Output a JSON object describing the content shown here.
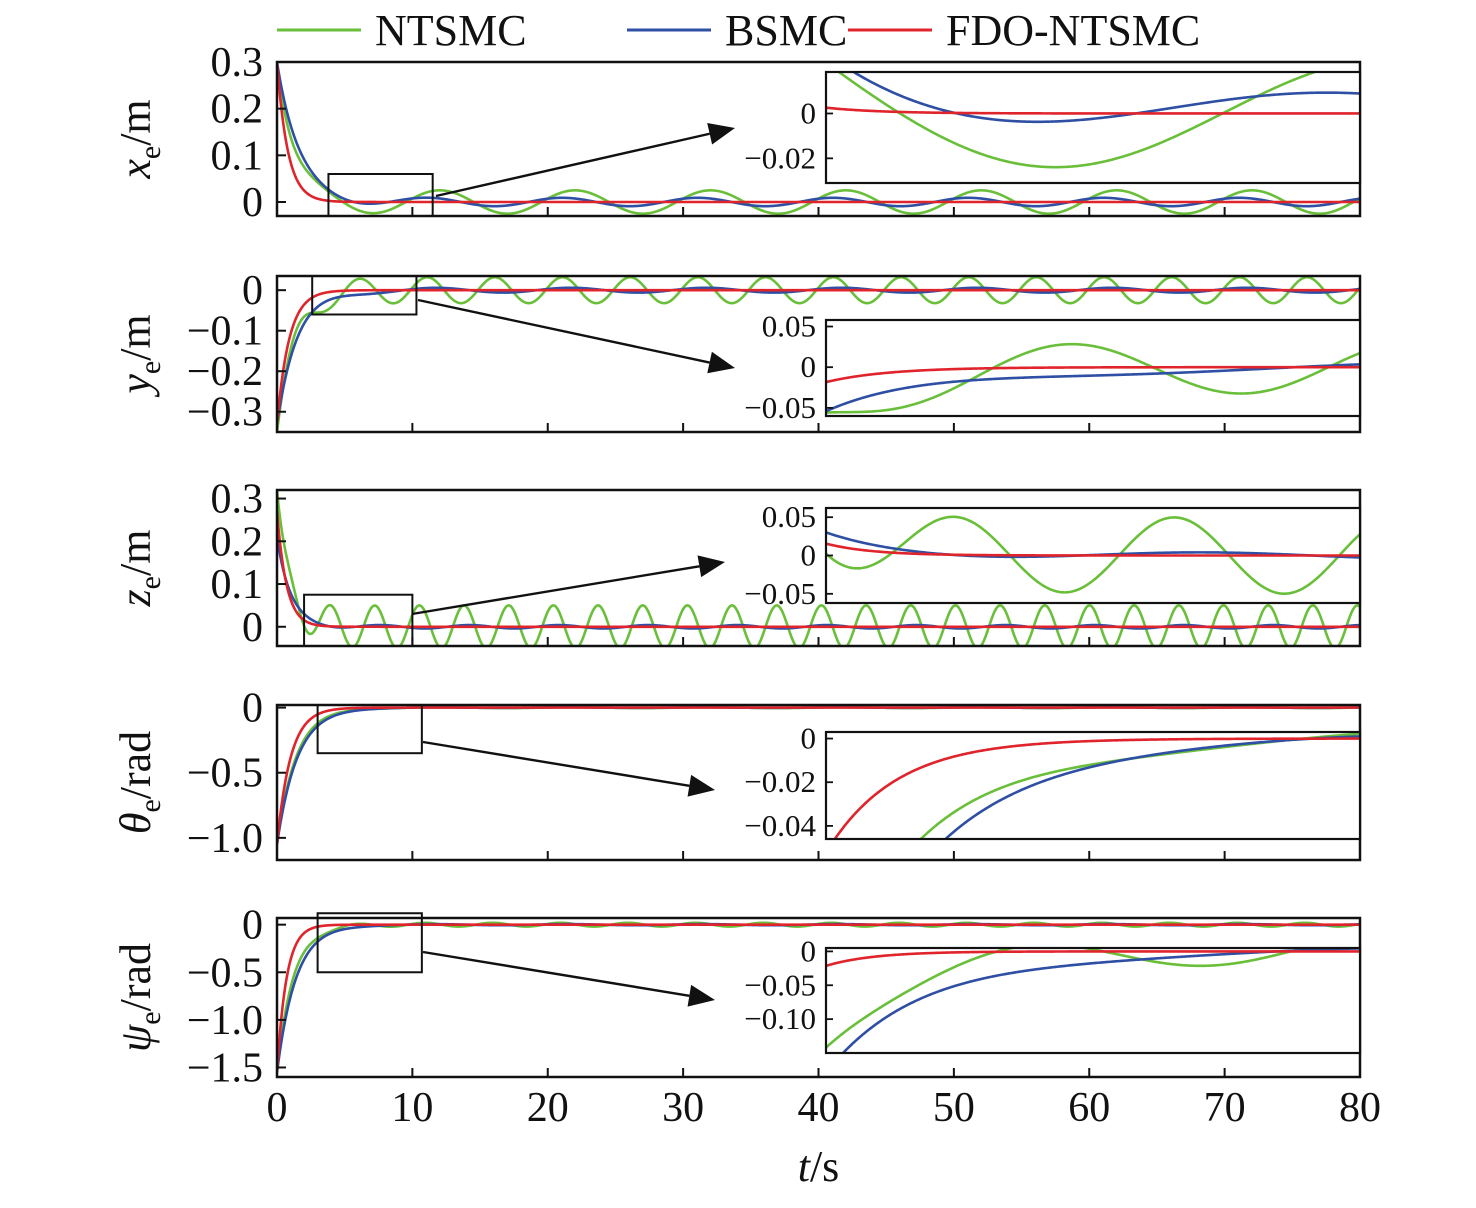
{
  "chart_data": {
    "type": "line",
    "xlabel": {
      "main": "t",
      "unit": "/s"
    },
    "xlim": [
      0,
      80
    ],
    "xticks": [
      0,
      10,
      20,
      30,
      40,
      50,
      60,
      70,
      80
    ],
    "grid": false,
    "legend_position": "top",
    "legend": [
      {
        "name": "NTSMC",
        "color": "#6abf3a"
      },
      {
        "name": "BSMC",
        "color": "#2e4fa3"
      },
      {
        "name": "FDO-NTSMC",
        "color": "#e0242c"
      }
    ],
    "colors": {
      "NTSMC": "#6abf3a",
      "BSMC": "#2e4fa3",
      "FDO-NTSMC": "#e0242c"
    },
    "subplots": [
      {
        "id": "x",
        "ylabel": {
          "main": "x",
          "sub": "e",
          "unit": "/m"
        },
        "ylim": [
          -0.03,
          0.3
        ],
        "yticks": [
          0,
          0.1,
          0.2,
          0.3
        ],
        "ytick_labels": [
          "0",
          "0.1",
          "0.2",
          "0.3"
        ],
        "zoom_box": {
          "x": [
            3.8,
            11.5
          ],
          "y": [
            -0.03,
            0.06
          ]
        },
        "inset": {
          "xlim": [
            3.8,
            11.5
          ],
          "ylim": [
            -0.031,
            0.0185
          ],
          "yticks": [
            0,
            -0.02
          ],
          "ytick_labels": [
            "0",
            "−0.02"
          ]
        },
        "series": [
          {
            "name": "NTSMC",
            "initial": 0.3,
            "tau": 1.2,
            "osc_amp": 0.025,
            "osc_period": 10,
            "osc_phase": 0.3
          },
          {
            "name": "BSMC",
            "initial": 0.3,
            "tau": 1.6,
            "osc_amp": 0.009,
            "osc_period": 10,
            "osc_phase": 0.9
          },
          {
            "name": "FDO-NTSMC",
            "initial": 0.3,
            "tau": 0.8,
            "osc_amp": 0.0,
            "osc_period": 10,
            "osc_phase": 0
          }
        ]
      },
      {
        "id": "y",
        "ylabel": {
          "main": "y",
          "sub": "e",
          "unit": "/m"
        },
        "ylim": [
          -0.35,
          0.035
        ],
        "yticks": [
          0,
          -0.1,
          -0.2,
          -0.3
        ],
        "ytick_labels": [
          "0",
          "−0.1",
          "−0.2",
          "−0.3"
        ],
        "zoom_box": {
          "x": [
            2.6,
            10.3
          ],
          "y": [
            -0.06,
            0.035
          ]
        },
        "inset": {
          "xlim": [
            2.6,
            10.3
          ],
          "ylim": [
            -0.06,
            0.058
          ],
          "yticks": [
            0.05,
            0,
            -0.05
          ],
          "ytick_labels": [
            "0.05",
            "0",
            "−0.05"
          ]
        },
        "series": [
          {
            "name": "NTSMC",
            "initial": -0.35,
            "tau": 1.3,
            "osc_amp": 0.032,
            "osc_period": 5,
            "osc_phase": 0.2
          },
          {
            "name": "BSMC",
            "initial": -0.33,
            "tau": 1.5,
            "osc_amp": 0.006,
            "osc_period": 10,
            "osc_phase": 0.5
          },
          {
            "name": "FDO-NTSMC",
            "initial": -0.33,
            "tau": 0.9,
            "osc_amp": 0.0,
            "osc_period": 10,
            "osc_phase": 0
          }
        ]
      },
      {
        "id": "z",
        "ylabel": {
          "main": "z",
          "sub": "e",
          "unit": "/m"
        },
        "ylim": [
          -0.045,
          0.32
        ],
        "yticks": [
          0,
          0.1,
          0.2,
          0.3
        ],
        "ytick_labels": [
          "0",
          "0.1",
          "0.2",
          "0.3"
        ],
        "zoom_box": {
          "x": [
            2.0,
            10.0
          ],
          "y": [
            -0.045,
            0.075
          ]
        },
        "inset": {
          "xlim": [
            2.0,
            10.0
          ],
          "ylim": [
            -0.062,
            0.062
          ],
          "yticks": [
            0.05,
            0,
            -0.05
          ],
          "ytick_labels": [
            "0.05",
            "0",
            "−0.05"
          ]
        },
        "series": [
          {
            "name": "NTSMC",
            "initial": 0.32,
            "tau": 0.9,
            "osc_amp": 0.05,
            "osc_period": 3.3,
            "osc_phase": 0.4
          },
          {
            "name": "BSMC",
            "initial": 0.21,
            "tau": 1.0,
            "osc_amp": 0.004,
            "osc_period": 6.6,
            "osc_phase": 0.6
          },
          {
            "name": "FDO-NTSMC",
            "initial": 0.27,
            "tau": 0.7,
            "osc_amp": 0.0,
            "osc_period": 10,
            "osc_phase": 0
          }
        ]
      },
      {
        "id": "theta",
        "ylabel": {
          "main": "θ",
          "sub": "e",
          "unit": "/rad"
        },
        "ylim": [
          -1.17,
          0.02
        ],
        "yticks": [
          0,
          -0.5,
          -1.0
        ],
        "ytick_labels": [
          "0",
          "−0.5",
          "−1.0"
        ],
        "zoom_box": {
          "x": [
            3.0,
            10.7
          ],
          "y": [
            -0.35,
            0.02
          ]
        },
        "inset": {
          "xlim": [
            3.0,
            10.7
          ],
          "ylim": [
            -0.046,
            0.003
          ],
          "yticks": [
            0,
            -0.02,
            -0.04
          ],
          "ytick_labels": [
            "0",
            "−0.02",
            "−0.04"
          ]
        },
        "series": [
          {
            "name": "NTSMC",
            "initial": -1.05,
            "tau": 1.4,
            "osc_amp": 0.004,
            "osc_period": 10,
            "osc_phase": 0.3
          },
          {
            "name": "BSMC",
            "initial": -1.05,
            "tau": 1.5,
            "osc_amp": 0.002,
            "osc_period": 10,
            "osc_phase": 0.7
          },
          {
            "name": "FDO-NTSMC",
            "initial": -1.05,
            "tau": 1.0,
            "osc_amp": 0.0,
            "osc_period": 10,
            "osc_phase": 0
          }
        ]
      },
      {
        "id": "psi",
        "ylabel": {
          "main": "ψ",
          "sub": "e",
          "unit": "/rad"
        },
        "ylim": [
          -1.6,
          0.07
        ],
        "yticks": [
          0,
          -0.5,
          -1.0,
          -1.5
        ],
        "ytick_labels": [
          "0",
          "−0.5",
          "−1.0",
          "−1.5"
        ],
        "zoom_box": {
          "x": [
            3.0,
            10.7
          ],
          "y": [
            -0.5,
            0.12
          ]
        },
        "inset": {
          "xlim": [
            3.0,
            10.7
          ],
          "ylim": [
            -0.15,
            0.005
          ],
          "yticks": [
            0,
            -0.05,
            -0.1
          ],
          "ytick_labels": [
            "0",
            "−0.05",
            "−0.10"
          ]
        },
        "series": [
          {
            "name": "NTSMC",
            "initial": -1.55,
            "tau": 1.2,
            "osc_amp": 0.02,
            "osc_period": 5,
            "osc_phase": 0.4
          },
          {
            "name": "BSMC",
            "initial": -1.55,
            "tau": 1.4,
            "osc_amp": 0.006,
            "osc_period": 10,
            "osc_phase": 0.6
          },
          {
            "name": "FDO-NTSMC",
            "initial": -1.55,
            "tau": 0.7,
            "osc_amp": 0.0,
            "osc_period": 10,
            "osc_phase": 0
          }
        ]
      }
    ]
  }
}
